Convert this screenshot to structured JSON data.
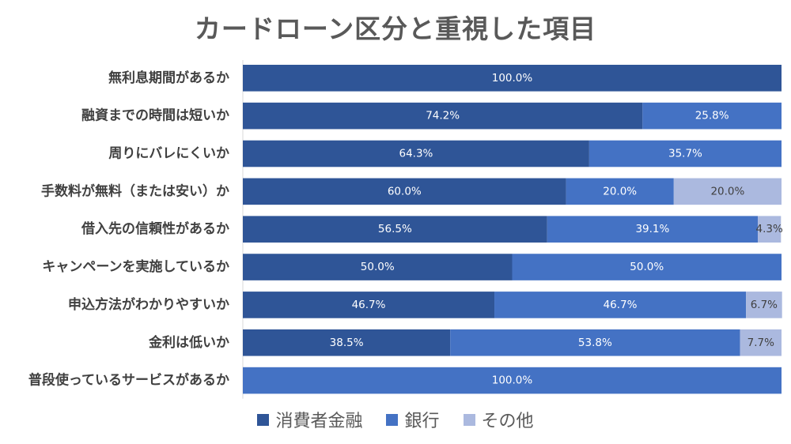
{
  "chart_data": {
    "type": "bar",
    "orientation": "horizontal",
    "stacked": true,
    "title": "カードローン区分と重視した項目",
    "categories": [
      "無利息期間があるか",
      "融資までの時間は短いか",
      "周りにバレにくいか",
      "手数料が無料（または安い）か",
      "借入先の信頼性があるか",
      "キャンペーンを実施しているか",
      "申込方法がわかりやすいか",
      "金利は低いか",
      "普段使っているサービスがあるか"
    ],
    "series": [
      {
        "name": "消費者金融",
        "color": "#2f5597",
        "label_color": "#ffffff",
        "values": [
          100.0,
          74.2,
          64.3,
          60.0,
          56.5,
          50.0,
          46.7,
          38.5,
          0.0
        ]
      },
      {
        "name": "銀行",
        "color": "#4472c4",
        "label_color": "#ffffff",
        "values": [
          0.0,
          25.8,
          35.7,
          20.0,
          39.1,
          50.0,
          46.7,
          53.8,
          100.0
        ]
      },
      {
        "name": "その他",
        "color": "#abb9df",
        "label_color": "#404040",
        "values": [
          0.0,
          0.0,
          0.0,
          20.0,
          4.3,
          0.0,
          6.7,
          7.7,
          0.0
        ]
      }
    ],
    "xlim": [
      0,
      100
    ],
    "grid": false,
    "legend_position": "bottom"
  }
}
